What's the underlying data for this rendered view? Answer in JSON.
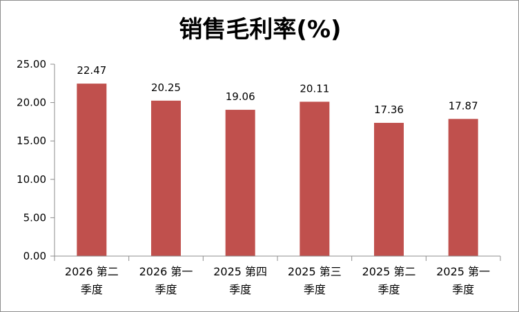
{
  "chart_data": {
    "type": "bar",
    "title": "销售毛利率(%)",
    "categories": [
      "2026 第二季度",
      "2026 第一季度",
      "2025 第四季度",
      "2025 第三季度",
      "2025 第二季度",
      "2025 第一季度"
    ],
    "category_lines": [
      [
        "2026 第二",
        "季度"
      ],
      [
        "2026 第一",
        "季度"
      ],
      [
        "2025 第四",
        "季度"
      ],
      [
        "2025 第三",
        "季度"
      ],
      [
        "2025 第二",
        "季度"
      ],
      [
        "2025 第一",
        "季度"
      ]
    ],
    "values": [
      22.47,
      20.25,
      19.06,
      20.11,
      17.36,
      17.87
    ],
    "value_labels": [
      "22.47",
      "20.25",
      "19.06",
      "20.11",
      "17.36",
      "17.87"
    ],
    "ylim": [
      0,
      25
    ],
    "yticks": [
      "0.00",
      "5.00",
      "10.00",
      "15.00",
      "20.00",
      "25.00"
    ],
    "ytick_values": [
      0,
      5,
      10,
      15,
      20,
      25
    ],
    "grid": false,
    "legend": "none",
    "bar_color": "#c0504d",
    "axis_color": "#8c8c8c"
  }
}
